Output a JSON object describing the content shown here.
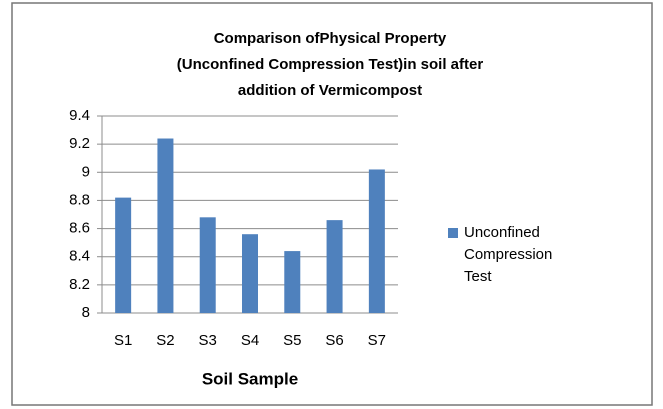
{
  "chart_data": {
    "type": "bar",
    "title": "Comparison ofPhysical Property (Unconfined Compression Test)in soil after addition of Vermicompost",
    "x_label": "Soil Sample",
    "categories": [
      "S1",
      "S2",
      "S3",
      "S4",
      "S5",
      "S6",
      "S7"
    ],
    "series": [
      {
        "name": "Unconfined Compression Test",
        "color": "#4f81bd",
        "values": [
          8.82,
          9.24,
          8.68,
          8.56,
          8.44,
          8.66,
          9.02
        ]
      }
    ],
    "ylim": [
      8,
      9.4
    ],
    "yticks": [
      8,
      8.2,
      8.4,
      8.6,
      8.8,
      9,
      9.2,
      9.4
    ],
    "grid": true,
    "legend": "right"
  }
}
